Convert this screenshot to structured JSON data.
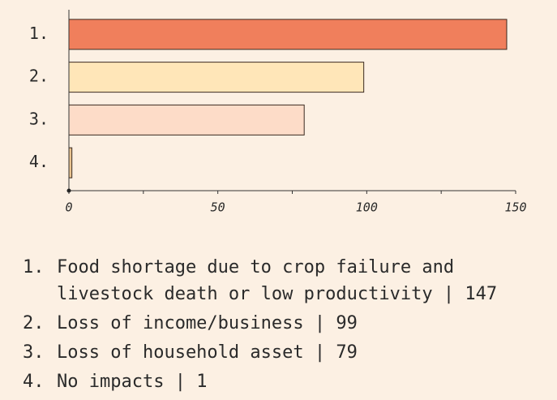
{
  "chart_data": {
    "type": "bar",
    "orientation": "horizontal",
    "category_labels": [
      "1.",
      "2.",
      "3.",
      "4."
    ],
    "categories": [
      "Food shortage due to crop failure and livestock death or low productivity",
      "Loss of income/business",
      "Loss of household asset",
      "No impacts"
    ],
    "values": [
      147,
      99,
      79,
      1
    ],
    "colors": [
      "#f07f5c",
      "#ffe6b8",
      "#fddcc8",
      "#e8c28f"
    ],
    "xlim": [
      0,
      150
    ],
    "xticks": [
      0,
      50,
      100,
      150
    ],
    "minor_xticks": [
      25,
      75,
      125
    ],
    "label_separator": " | "
  }
}
